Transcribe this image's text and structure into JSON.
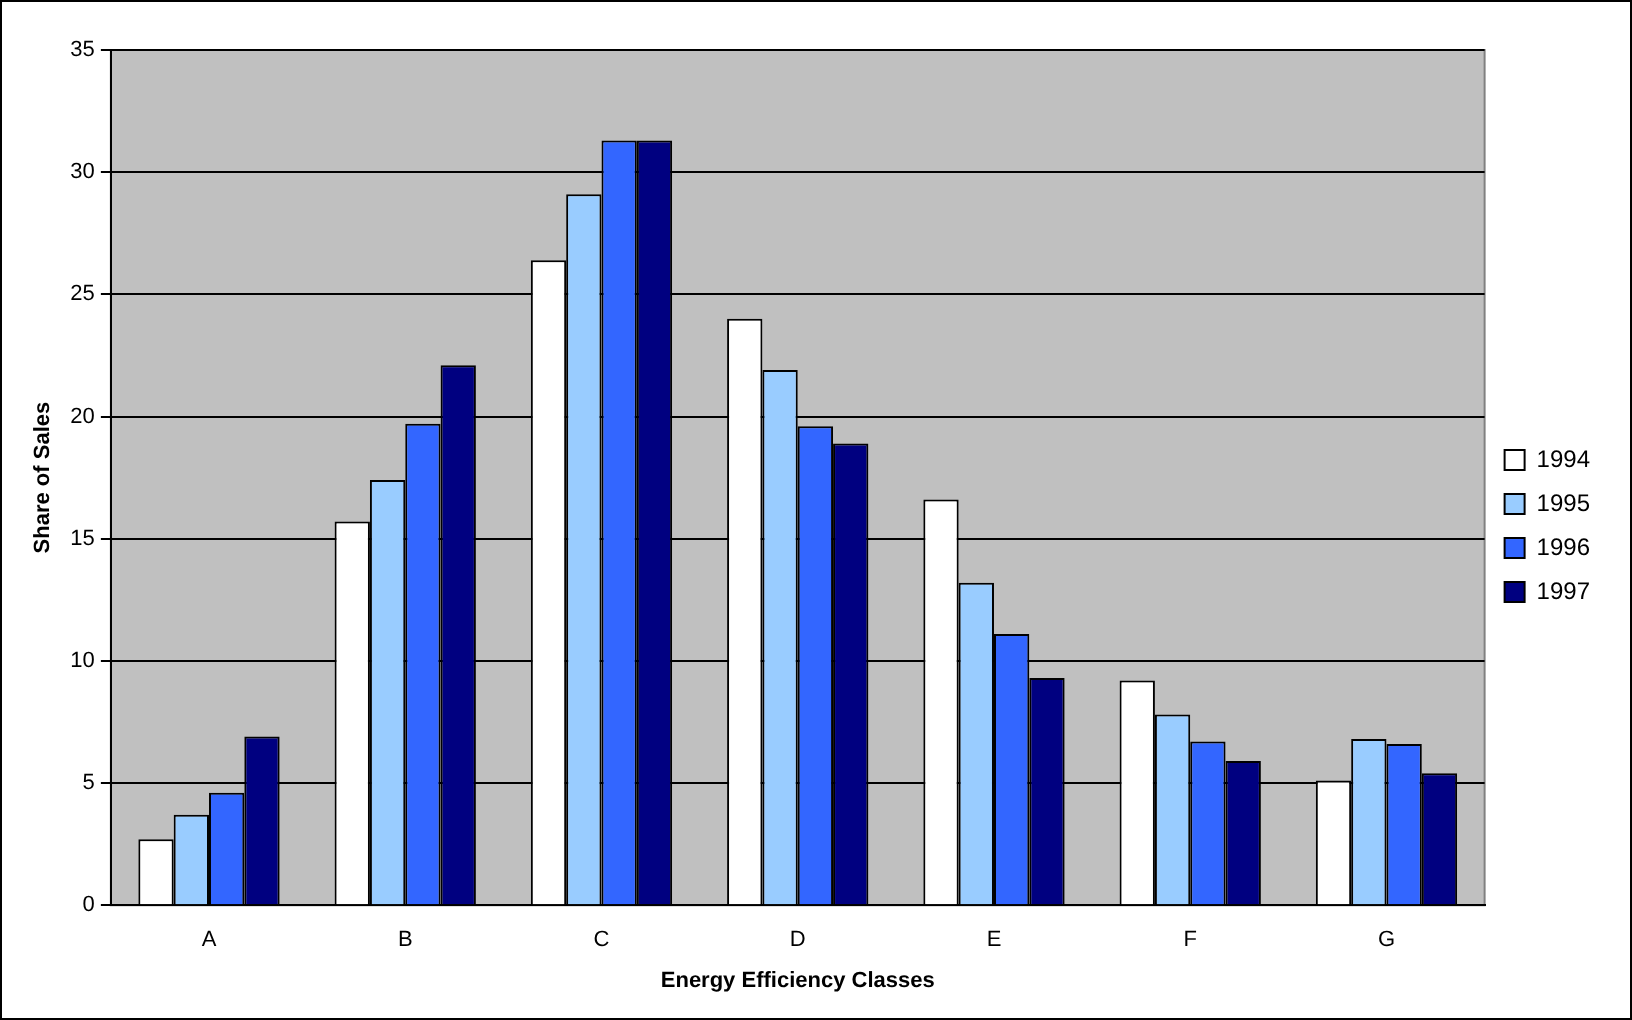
{
  "chart_data": {
    "type": "bar",
    "xlabel": "Energy Efficiency Classes",
    "ylabel": "Share of Sales",
    "categories": [
      "A",
      "B",
      "C",
      "D",
      "E",
      "F",
      "G"
    ],
    "series": [
      {
        "name": "1994",
        "color": "#ffffff",
        "values": [
          2.7,
          15.7,
          26.4,
          24.0,
          16.6,
          9.2,
          5.1
        ]
      },
      {
        "name": "1995",
        "color": "#99ccff",
        "values": [
          3.7,
          17.4,
          29.1,
          21.9,
          13.2,
          7.8,
          6.8
        ]
      },
      {
        "name": "1996",
        "color": "#3366ff",
        "values": [
          4.6,
          19.7,
          31.3,
          19.6,
          11.1,
          6.7,
          6.6
        ]
      },
      {
        "name": "1997",
        "color": "#000080",
        "values": [
          6.9,
          22.1,
          31.3,
          18.9,
          9.3,
          5.9,
          5.4
        ]
      }
    ],
    "ylim": [
      0,
      35
    ],
    "yticks": [
      0,
      5,
      10,
      15,
      20,
      25,
      30,
      35
    ],
    "grid": "y",
    "legend": "right"
  }
}
